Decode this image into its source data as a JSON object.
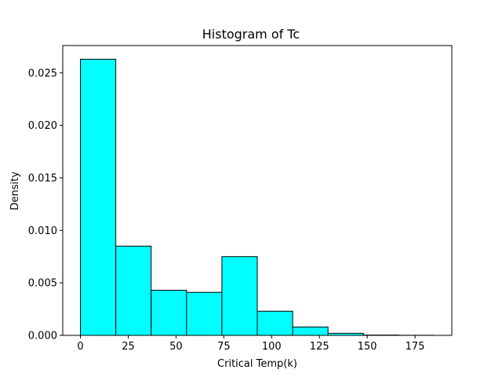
{
  "chart_data": {
    "type": "bar",
    "title": "Histogram of Tc",
    "xlabel": "Critical Temp(k)",
    "ylabel": "Density",
    "bin_edges": [
      0,
      18.5,
      37,
      55.5,
      74,
      92.5,
      111,
      129.5,
      148,
      166.5,
      185
    ],
    "values": [
      0.0263,
      0.0085,
      0.0043,
      0.0041,
      0.0075,
      0.0023,
      0.0008,
      0.0002,
      3e-05,
      1e-05
    ],
    "xlim": [
      -9.25,
      194.25
    ],
    "ylim": [
      0,
      0.0276
    ],
    "xticks": [
      0,
      25,
      50,
      75,
      100,
      125,
      150,
      175
    ],
    "xtick_labels": [
      "0",
      "25",
      "50",
      "75",
      "100",
      "125",
      "150",
      "175"
    ],
    "yticks": [
      0,
      0.005,
      0.01,
      0.015,
      0.02,
      0.025
    ],
    "ytick_labels": [
      "0.000",
      "0.005",
      "0.010",
      "0.015",
      "0.020",
      "0.025"
    ],
    "grid": false,
    "bar_color": "#00ffff",
    "edge_color": "#000000"
  }
}
